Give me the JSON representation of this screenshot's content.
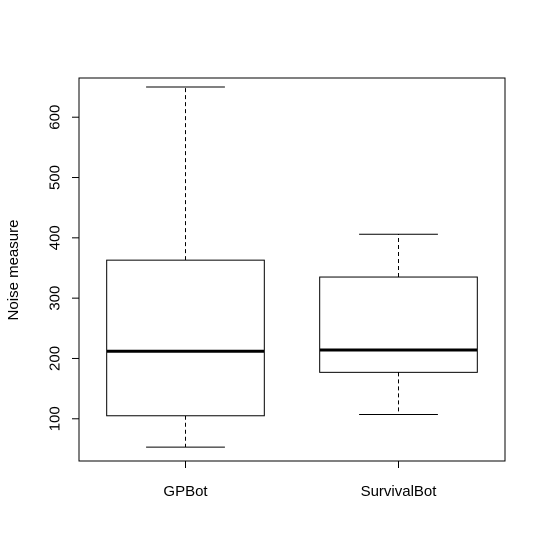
{
  "chart_data": {
    "type": "boxplot",
    "title": "",
    "xlabel": "",
    "ylabel": "Noise measure",
    "ylim": [
      30,
      665
    ],
    "yticks": [
      100,
      200,
      300,
      400,
      500,
      600
    ],
    "categories": [
      "GPBot",
      "SurvivalBot"
    ],
    "boxes": [
      {
        "category": "GPBot",
        "min": 53,
        "q1": 105,
        "median": 212,
        "q3": 363,
        "max": 650
      },
      {
        "category": "SurvivalBot",
        "min": 107,
        "q1": 177,
        "median": 214,
        "q3": 335,
        "max": 406
      }
    ],
    "grid": false,
    "legend": "none",
    "colors": {
      "line": "#000000",
      "box_fill": "#ffffff",
      "background": "#ffffff"
    }
  }
}
